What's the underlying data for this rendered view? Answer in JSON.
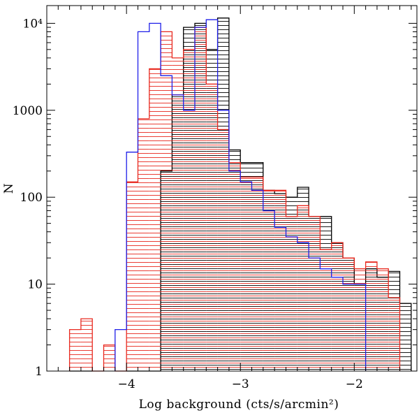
{
  "chart_data": {
    "type": "histogram",
    "title": "",
    "xlabel": "Log background (cts/s/arcmin²)",
    "ylabel": "N",
    "xlim": [
      -4.7,
      -1.45
    ],
    "ylim": [
      1,
      16000
    ],
    "yscale": "log",
    "x_ticks": [
      {
        "value": -4,
        "label": "−4"
      },
      {
        "value": -3,
        "label": "−3"
      },
      {
        "value": -2,
        "label": "−2"
      }
    ],
    "y_ticks": [
      {
        "value": 1,
        "label": "1"
      },
      {
        "value": 10,
        "label": "10"
      },
      {
        "value": 100,
        "label": "100"
      },
      {
        "value": 1000,
        "label": "1000"
      },
      {
        "value": 10000,
        "label": "10⁴"
      }
    ],
    "bin_width": 0.1,
    "series": [
      {
        "color": "#000000",
        "hatched": true,
        "bins": [
          {
            "x0": -4.5,
            "x1": -4.3,
            "y": 1
          },
          {
            "x0": -4.0,
            "x1": -3.7,
            "y": 1
          },
          {
            "x0": -3.7,
            "x1": -3.6,
            "y": 200
          },
          {
            "x0": -3.6,
            "x1": -3.5,
            "y": 1500
          },
          {
            "x0": -3.5,
            "x1": -3.4,
            "y": 9000
          },
          {
            "x0": -3.4,
            "x1": -3.3,
            "y": 10000
          },
          {
            "x0": -3.3,
            "x1": -3.2,
            "y": 5000
          },
          {
            "x0": -3.2,
            "x1": -3.1,
            "y": 11500
          },
          {
            "x0": -3.1,
            "x1": -3.0,
            "y": 350
          },
          {
            "x0": -3.0,
            "x1": -2.8,
            "y": 250
          },
          {
            "x0": -2.8,
            "x1": -2.7,
            "y": 120
          },
          {
            "x0": -2.7,
            "x1": -2.6,
            "y": 110
          },
          {
            "x0": -2.6,
            "x1": -2.5,
            "y": 100
          },
          {
            "x0": -2.5,
            "x1": -2.4,
            "y": 130
          },
          {
            "x0": -2.4,
            "x1": -2.2,
            "y": 60
          },
          {
            "x0": -2.2,
            "x1": -2.1,
            "y": 30
          },
          {
            "x0": -2.1,
            "x1": -2.0,
            "y": 20
          },
          {
            "x0": -2.0,
            "x1": -1.9,
            "y": 10
          },
          {
            "x0": -1.9,
            "x1": -1.8,
            "y": 15
          },
          {
            "x0": -1.8,
            "x1": -1.7,
            "y": 12
          },
          {
            "x0": -1.7,
            "x1": -1.6,
            "y": 14
          },
          {
            "x0": -1.6,
            "x1": -1.5,
            "y": 6
          }
        ]
      },
      {
        "color": "#e8281e",
        "hatched": true,
        "bins": [
          {
            "x0": -4.5,
            "x1": -4.4,
            "y": 3
          },
          {
            "x0": -4.4,
            "x1": -4.3,
            "y": 4
          },
          {
            "x0": -4.3,
            "x1": -4.2,
            "y": 1
          },
          {
            "x0": -4.2,
            "x1": -4.1,
            "y": 2
          },
          {
            "x0": -4.1,
            "x1": -4.0,
            "y": 1
          },
          {
            "x0": -4.0,
            "x1": -3.9,
            "y": 150
          },
          {
            "x0": -3.9,
            "x1": -3.8,
            "y": 800
          },
          {
            "x0": -3.8,
            "x1": -3.7,
            "y": 3000
          },
          {
            "x0": -3.7,
            "x1": -3.6,
            "y": 8000
          },
          {
            "x0": -3.6,
            "x1": -3.5,
            "y": 4000
          },
          {
            "x0": -3.5,
            "x1": -3.4,
            "y": 5000
          },
          {
            "x0": -3.4,
            "x1": -3.3,
            "y": 9000
          },
          {
            "x0": -3.3,
            "x1": -3.2,
            "y": 2000
          },
          {
            "x0": -3.2,
            "x1": -3.1,
            "y": 600
          },
          {
            "x0": -3.1,
            "x1": -3.0,
            "y": 250
          },
          {
            "x0": -3.0,
            "x1": -2.8,
            "y": 170
          },
          {
            "x0": -2.8,
            "x1": -2.6,
            "y": 120
          },
          {
            "x0": -2.6,
            "x1": -2.5,
            "y": 60
          },
          {
            "x0": -2.5,
            "x1": -2.4,
            "y": 80
          },
          {
            "x0": -2.4,
            "x1": -2.3,
            "y": 60
          },
          {
            "x0": -2.3,
            "x1": -2.2,
            "y": 25
          },
          {
            "x0": -2.2,
            "x1": -2.1,
            "y": 30
          },
          {
            "x0": -2.1,
            "x1": -2.0,
            "y": 20
          },
          {
            "x0": -2.0,
            "x1": -1.9,
            "y": 15
          },
          {
            "x0": -1.9,
            "x1": -1.8,
            "y": 18
          },
          {
            "x0": -1.8,
            "x1": -1.7,
            "y": 15
          },
          {
            "x0": -1.7,
            "x1": -1.6,
            "y": 7
          }
        ]
      },
      {
        "color": "#1e1ee8",
        "hatched": false,
        "bins": [
          {
            "x0": -4.1,
            "x1": -4.0,
            "y": 3
          },
          {
            "x0": -4.0,
            "x1": -3.9,
            "y": 330
          },
          {
            "x0": -3.9,
            "x1": -3.8,
            "y": 8000
          },
          {
            "x0": -3.8,
            "x1": -3.7,
            "y": 10000
          },
          {
            "x0": -3.7,
            "x1": -3.6,
            "y": 2500
          },
          {
            "x0": -3.6,
            "x1": -3.5,
            "y": 1500
          },
          {
            "x0": -3.5,
            "x1": -3.4,
            "y": 1000
          },
          {
            "x0": -3.4,
            "x1": -3.3,
            "y": 9000
          },
          {
            "x0": -3.3,
            "x1": -3.2,
            "y": 11000
          },
          {
            "x0": -3.2,
            "x1": -3.1,
            "y": 1000
          },
          {
            "x0": -3.1,
            "x1": -3.0,
            "y": 200
          },
          {
            "x0": -3.0,
            "x1": -2.9,
            "y": 150
          },
          {
            "x0": -2.9,
            "x1": -2.8,
            "y": 120
          },
          {
            "x0": -2.8,
            "x1": -2.7,
            "y": 70
          },
          {
            "x0": -2.7,
            "x1": -2.6,
            "y": 45
          },
          {
            "x0": -2.6,
            "x1": -2.5,
            "y": 35
          },
          {
            "x0": -2.5,
            "x1": -2.4,
            "y": 30
          },
          {
            "x0": -2.4,
            "x1": -2.3,
            "y": 20
          },
          {
            "x0": -2.3,
            "x1": -2.2,
            "y": 15
          },
          {
            "x0": -2.2,
            "x1": -2.1,
            "y": 12
          },
          {
            "x0": -2.1,
            "x1": -2.0,
            "y": 10
          },
          {
            "x0": -2.0,
            "x1": -1.9,
            "y": 10
          }
        ]
      }
    ]
  }
}
